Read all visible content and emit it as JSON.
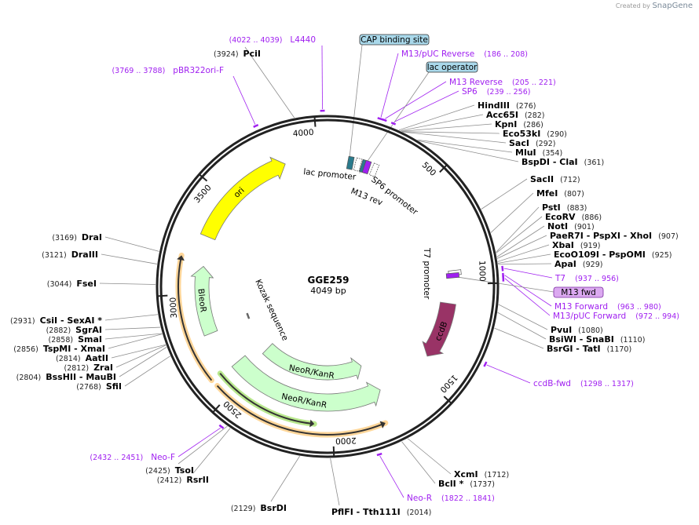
{
  "branding": {
    "created_by": "Created by",
    "product": "SnapGene"
  },
  "map": {
    "name": "GGE259",
    "length_label": "4049 bp",
    "length": 4049
  },
  "colors": {
    "primer": "#a020f0",
    "ori": "#ffff00",
    "resistance": "#ccffcc",
    "ccdB": "#993366",
    "lac": "#2a7a8c",
    "box_blue": "#a9d8ea",
    "box_purple": "#dba9f0",
    "halo_orange": "#ffd699",
    "halo_green": "#b9e88e"
  },
  "ticks": [
    {
      "bp": 500,
      "label": "500"
    },
    {
      "bp": 1000,
      "label": "1000"
    },
    {
      "bp": 1500,
      "label": "1500"
    },
    {
      "bp": 2000,
      "label": "2000"
    },
    {
      "bp": 2500,
      "label": "2500"
    },
    {
      "bp": 3000,
      "label": "3000"
    },
    {
      "bp": 3500,
      "label": "3500"
    },
    {
      "bp": 4000,
      "label": "4000"
    }
  ],
  "sites": [
    {
      "name": "HindIII",
      "pos": "(276)",
      "bp": 276
    },
    {
      "name": "Acc65I",
      "pos": "(282)",
      "bp": 282
    },
    {
      "name": "KpnI",
      "pos": "(286)",
      "bp": 286
    },
    {
      "name": "Eco53kI",
      "pos": "(290)",
      "bp": 290
    },
    {
      "name": "SacI",
      "pos": "(292)",
      "bp": 292
    },
    {
      "name": "MluI",
      "pos": "(354)",
      "bp": 354
    },
    {
      "name": "BspDI  - ClaI",
      "pos": "(361)",
      "bp": 361
    },
    {
      "name": "SacII",
      "pos": "(712)",
      "bp": 712
    },
    {
      "name": "MfeI",
      "pos": "(807)",
      "bp": 807
    },
    {
      "name": "PstI",
      "pos": "(883)",
      "bp": 883
    },
    {
      "name": "EcoRV",
      "pos": "(886)",
      "bp": 886
    },
    {
      "name": "NotI",
      "pos": "(901)",
      "bp": 901
    },
    {
      "name": "PaeR7I  - PspXI  - XhoI",
      "pos": "(907)",
      "bp": 907
    },
    {
      "name": "XbaI",
      "pos": "(919)",
      "bp": 919
    },
    {
      "name": "EcoO109I  - PspOMI",
      "pos": "(925)",
      "bp": 925
    },
    {
      "name": "ApaI",
      "pos": "(929)",
      "bp": 929
    },
    {
      "name": "PvuI",
      "pos": "(1080)",
      "bp": 1080
    },
    {
      "name": "BsiWI  - SnaBI",
      "pos": "(1110)",
      "bp": 1110
    },
    {
      "name": "BsrGI  - TatI",
      "pos": "(1170)",
      "bp": 1170
    },
    {
      "name": "XcmI",
      "pos": "(1712)",
      "bp": 1712
    },
    {
      "name": "BclI *",
      "pos": "(1737)",
      "bp": 1737
    },
    {
      "name": "PflFI  - Tth111I",
      "pos": "(2014)",
      "bp": 2014
    },
    {
      "name": "BsrDI",
      "pos": "(2129)",
      "bp": 2129
    },
    {
      "name": "RsrII",
      "pos": "(2412)",
      "bp": 2412
    },
    {
      "name": "TsoI",
      "pos": "(2425)",
      "bp": 2425
    },
    {
      "name": "SfiI",
      "pos": "(2768)",
      "bp": 2768
    },
    {
      "name": "BssHII  - MauBI",
      "pos": "(2804)",
      "bp": 2804
    },
    {
      "name": "ZraI",
      "pos": "(2812)",
      "bp": 2812
    },
    {
      "name": "AatII",
      "pos": "(2814)",
      "bp": 2814
    },
    {
      "name": "TspMI  - XmaI",
      "pos": "(2856)",
      "bp": 2856
    },
    {
      "name": "SmaI",
      "pos": "(2858)",
      "bp": 2858
    },
    {
      "name": "SgrAI",
      "pos": "(2882)",
      "bp": 2882
    },
    {
      "name": "CsiI  - SexAI *",
      "pos": "(2931)",
      "bp": 2931
    },
    {
      "name": "FseI",
      "pos": "(3044)",
      "bp": 3044
    },
    {
      "name": "DraIII",
      "pos": "(3121)",
      "bp": 3121
    },
    {
      "name": "DraI",
      "pos": "(3169)",
      "bp": 3169
    },
    {
      "name": "PciI",
      "pos": "(3924)",
      "bp": 3924
    }
  ],
  "primers": [
    {
      "name": "L4440",
      "range": "(4022 .. 4039)",
      "start": 4022,
      "end": 4039
    },
    {
      "name": "pBR322ori-F",
      "range": "(3769 .. 3788)",
      "start": 3769,
      "end": 3788
    },
    {
      "name": "M13/pUC Reverse",
      "range": "(186 .. 208)",
      "start": 186,
      "end": 208
    },
    {
      "name": "M13 Reverse",
      "range": "(205 .. 221)",
      "start": 205,
      "end": 221
    },
    {
      "name": "SP6",
      "range": "(239 .. 256)",
      "start": 239,
      "end": 256
    },
    {
      "name": "T7",
      "range": "(937 .. 956)",
      "start": 937,
      "end": 956
    },
    {
      "name": "M13 Forward",
      "range": "(963 .. 980)",
      "start": 963,
      "end": 980
    },
    {
      "name": "M13/pUC Forward",
      "range": "(972 .. 994)",
      "start": 972,
      "end": 994
    },
    {
      "name": "ccdB-fwd",
      "range": "(1298 .. 1317)",
      "start": 1298,
      "end": 1317
    },
    {
      "name": "Neo-R",
      "range": "(1822 .. 1841)",
      "start": 1822,
      "end": 1841
    },
    {
      "name": "Neo-F",
      "range": "(2432 .. 2451)",
      "start": 2432,
      "end": 2451
    }
  ],
  "boxed_features": [
    {
      "name": "CAP binding site",
      "bp": 110
    },
    {
      "name": "lac operator",
      "bp": 176
    },
    {
      "name": "M13 fwd",
      "bp": 963
    }
  ],
  "features": [
    {
      "name": "ori",
      "start": 3290,
      "end": 3835,
      "direction": 1,
      "color": "#ffff00"
    },
    {
      "name": "BleoR",
      "start": 2790,
      "end": 3140,
      "direction": 1,
      "color": "#ccffcc"
    },
    {
      "name": "NeoR/KanR",
      "start": 1721,
      "end": 2587,
      "direction": -1,
      "color": "#ccffcc"
    },
    {
      "name": "NeoR/KanR",
      "start": 1766,
      "end": 2519,
      "direction": -1,
      "color": "#ccffcc"
    },
    {
      "name": "ccdB",
      "start": 1102,
      "end": 1406,
      "direction": 1,
      "color": "#993366"
    }
  ],
  "thin_features": [
    {
      "start": 2086,
      "end": 2598,
      "direction": -1,
      "halo": "#b9e88e"
    },
    {
      "start": 2598,
      "end": 3172,
      "direction": 1,
      "halo": "#ffd699"
    },
    {
      "start": 1766,
      "end": 2564,
      "direction": -1,
      "halo": "#ffd699"
    }
  ],
  "small_features": [
    {
      "name": "lac promoter",
      "bp": 118
    },
    {
      "name": "M13 rev",
      "bp": 189
    },
    {
      "name": "SP6 promoter",
      "bp": 246
    },
    {
      "name": "T7 promoter",
      "bp": 950
    },
    {
      "name": "Kozak sequence",
      "bp": 2790
    }
  ]
}
